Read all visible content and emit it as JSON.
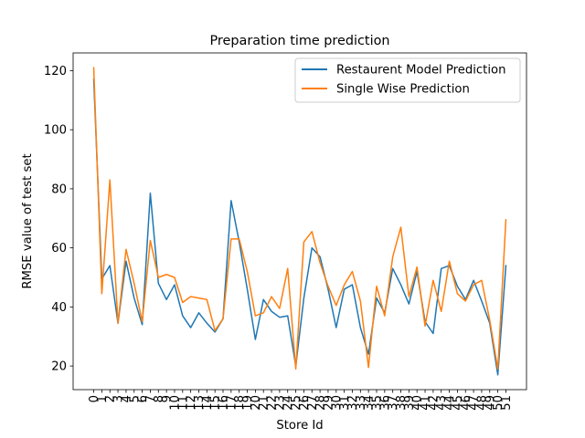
{
  "chart_data": {
    "type": "line",
    "title": "Preparation time prediction",
    "xlabel": "Store Id",
    "ylabel": "RMSE value of test set",
    "x": [
      0,
      1,
      2,
      3,
      4,
      5,
      6,
      7,
      8,
      9,
      10,
      11,
      12,
      13,
      14,
      15,
      16,
      17,
      18,
      19,
      20,
      21,
      22,
      23,
      24,
      25,
      26,
      27,
      28,
      29,
      30,
      31,
      32,
      33,
      34,
      35,
      36,
      37,
      38,
      39,
      40,
      41,
      42,
      43,
      44,
      45,
      46,
      47,
      48,
      49,
      50,
      51
    ],
    "xticks": [
      "0",
      "1",
      "2",
      "3",
      "4",
      "5",
      "6",
      "7",
      "8",
      "9",
      "10",
      "11",
      "12",
      "13",
      "14",
      "15",
      "16",
      "17",
      "18",
      "19",
      "20",
      "21",
      "22",
      "23",
      "24",
      "25",
      "26",
      "27",
      "28",
      "29",
      "30",
      "31",
      "32",
      "33",
      "34",
      "35",
      "36",
      "37",
      "38",
      "39",
      "40",
      "41",
      "42",
      "43",
      "44",
      "45",
      "46",
      "47",
      "48",
      "49",
      "50",
      "51"
    ],
    "yticks": [
      20,
      40,
      60,
      80,
      100,
      120
    ],
    "xlim": [
      -2.55,
      53.55
    ],
    "ylim": [
      12.0,
      126.0
    ],
    "grid": false,
    "legend_position": "top-right",
    "series": [
      {
        "name": "Restaurent Model Prediction",
        "color": "#1f77b4",
        "values": [
          117,
          49.5,
          54,
          34.5,
          55.5,
          43,
          34,
          78.5,
          48,
          42.5,
          47.5,
          37,
          33,
          38,
          34.5,
          31.5,
          36,
          76,
          62,
          46,
          29,
          42.5,
          38.5,
          36.5,
          37,
          20,
          43,
          60,
          57,
          46,
          33,
          46,
          47.5,
          33,
          24,
          43,
          38,
          53,
          47.5,
          41,
          52,
          35,
          31,
          53,
          54,
          47,
          42.5,
          49,
          42,
          34.5,
          17,
          54
        ]
      },
      {
        "name": "Single Wise Prediction",
        "color": "#ff7f0e",
        "values": [
          121,
          44.5,
          83,
          34.5,
          59.5,
          48,
          35,
          62.5,
          50,
          51,
          50,
          41.5,
          43.5,
          43,
          42.5,
          32,
          36,
          63,
          63,
          52,
          37,
          38,
          43.5,
          39.5,
          53,
          19,
          62,
          65.5,
          55,
          47,
          40.5,
          47.5,
          52,
          42,
          19.5,
          47,
          37,
          57,
          67,
          43.5,
          53.5,
          33.5,
          49,
          38.5,
          55.5,
          44.5,
          42,
          47.5,
          49,
          35.5,
          19,
          69.5
        ]
      }
    ]
  }
}
